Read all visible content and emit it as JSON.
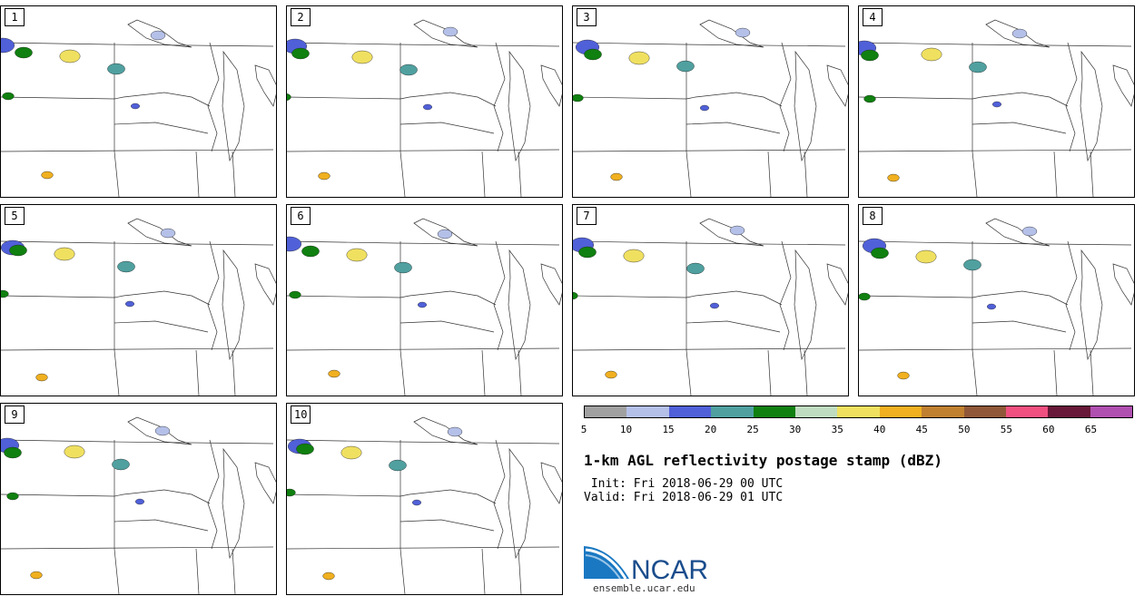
{
  "panels": [
    {
      "label": "1"
    },
    {
      "label": "2"
    },
    {
      "label": "3"
    },
    {
      "label": "4"
    },
    {
      "label": "5"
    },
    {
      "label": "6"
    },
    {
      "label": "7"
    },
    {
      "label": "8"
    },
    {
      "label": "9"
    },
    {
      "label": "10"
    }
  ],
  "colorbar": {
    "colors": [
      "#a0a0a0",
      "#b4c0e8",
      "#5060d8",
      "#50a0a0",
      "#108010",
      "#c0dcc0",
      "#f0e060",
      "#f0b020",
      "#c08030",
      "#905838",
      "#f05080",
      "#681838",
      "#b050b0"
    ],
    "ticks": [
      "5",
      "10",
      "15",
      "20",
      "25",
      "30",
      "35",
      "40",
      "45",
      "50",
      "55",
      "60",
      "65"
    ]
  },
  "title": "1-km AGL reflectivity postage stamp (dBZ)",
  "init_line": " Init: Fri 2018-06-29 00 UTC",
  "valid_line": "Valid: Fri 2018-06-29 01 UTC",
  "logo": {
    "text": "NCAR",
    "url": "ensemble.ucar.edu"
  }
}
